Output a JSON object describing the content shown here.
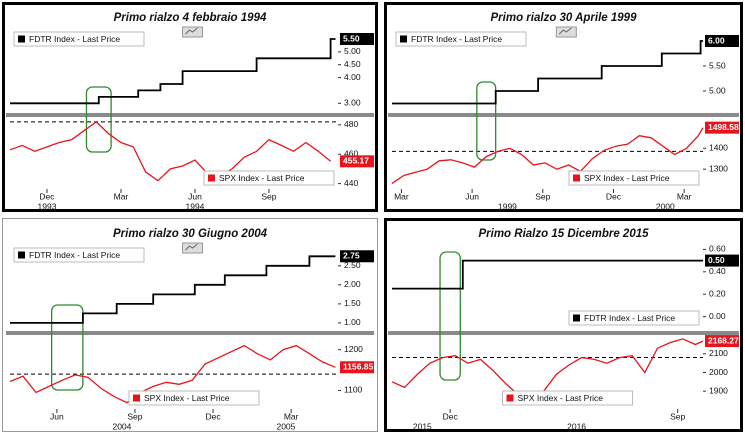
{
  "chart_data": [
    {
      "type": "line",
      "title": "Primo  rialzo 4 febbraio 1994",
      "xlim": [
        0.5,
        13.8
      ],
      "xticks": [
        {
          "value": 2,
          "label": "Dec"
        },
        {
          "value": 5,
          "label": "Mar"
        },
        {
          "value": 8,
          "label": "Jun"
        },
        {
          "value": 11,
          "label": "Sep"
        }
      ],
      "x_year_ticks": [
        {
          "value": 2,
          "label": "1993"
        },
        {
          "value": 8,
          "label": "1994"
        }
      ],
      "ylim": [
        2.7,
        5.85
      ],
      "yticks": [
        {
          "value": 3,
          "label": "3.00"
        },
        {
          "value": 4,
          "label": "4.00"
        },
        {
          "value": 4.5,
          "label": "4.50"
        },
        {
          "value": 5,
          "label": "5.00"
        }
      ],
      "y2lim": [
        437,
        484
      ],
      "y2ticks": [
        440,
        460,
        480
      ],
      "reference_y2": 482,
      "highlight_x": [
        3.6,
        4.6
      ],
      "legend_top": "upper left",
      "legend_bottom": "lower right",
      "series": [
        {
          "name": "FDTR Index - Last Price",
          "color": "#000000",
          "axis": "y",
          "last_label": "5.50",
          "x": [
            0.5,
            4.1,
            4.1,
            5.7,
            5.7,
            6.6,
            6.6,
            7.5,
            7.5,
            10.5,
            10.5,
            13.5,
            13.5,
            13.7
          ],
          "values": [
            3,
            3,
            3.25,
            3.25,
            3.5,
            3.5,
            3.75,
            3.75,
            4.25,
            4.25,
            4.75,
            4.75,
            5.5,
            5.5
          ]
        },
        {
          "name": "SPX Index - Last Price",
          "color": "#e8141c",
          "axis": "y2",
          "last_label": "455.17",
          "x": [
            0.5,
            1,
            1.5,
            2,
            2.5,
            3,
            3.5,
            4,
            4.5,
            5,
            5.5,
            6,
            6.5,
            7,
            7.5,
            8,
            8.5,
            9,
            9.5,
            10,
            10.5,
            11,
            11.5,
            12,
            12.5,
            13,
            13.5
          ],
          "values": [
            463,
            466,
            462,
            465,
            468,
            470,
            476,
            482,
            474,
            468,
            465,
            448,
            442,
            450,
            452,
            456,
            447,
            445,
            450,
            458,
            462,
            470,
            466,
            462,
            468,
            462,
            455.17
          ]
        }
      ]
    },
    {
      "type": "line",
      "title": "Primo rialzo 30 Aprile 1999",
      "xlim": [
        0.6,
        13.8
      ],
      "xticks": [
        {
          "value": 1,
          "label": "Mar"
        },
        {
          "value": 4,
          "label": "Jun"
        },
        {
          "value": 7,
          "label": "Sep"
        },
        {
          "value": 10,
          "label": "Dec"
        },
        {
          "value": 13,
          "label": "Mar"
        }
      ],
      "x_year_ticks": [
        {
          "value": 5.5,
          "label": "1999"
        },
        {
          "value": 12.2,
          "label": "2000"
        }
      ],
      "ylim": [
        4.6,
        6.22
      ],
      "yticks": [
        {
          "value": 5,
          "label": "5.00"
        },
        {
          "value": 5.5,
          "label": "5.50"
        }
      ],
      "y2lim": [
        1210,
        1540
      ],
      "y2ticks": [
        1300,
        1400
      ],
      "reference_y2": 1385,
      "highlight_x": [
        4.2,
        5.0
      ],
      "legend_top": "upper left",
      "legend_bottom": "lower right",
      "series": [
        {
          "name": "FDTR Index - Last Price",
          "color": "#000000",
          "axis": "y",
          "last_label": "6.00",
          "x": [
            0.6,
            5,
            5,
            6.8,
            6.8,
            9.5,
            9.5,
            12.05,
            12.05,
            13.7,
            13.7,
            13.8
          ],
          "values": [
            4.75,
            4.75,
            5,
            5,
            5.25,
            5.25,
            5.5,
            5.5,
            5.75,
            5.75,
            6,
            6
          ]
        },
        {
          "name": "SPX Index - Last Price",
          "color": "#e8141c",
          "axis": "y2",
          "last_label": "1498.58",
          "x": [
            0.6,
            1.1,
            1.6,
            2.1,
            2.6,
            3.1,
            3.6,
            4.1,
            4.6,
            5.1,
            5.6,
            6.1,
            6.6,
            7.1,
            7.6,
            8.1,
            8.6,
            9.1,
            9.6,
            10.1,
            10.6,
            11.1,
            11.6,
            12.1,
            12.6,
            13.1,
            13.6,
            13.8
          ],
          "values": [
            1232,
            1270,
            1285,
            1300,
            1340,
            1345,
            1330,
            1310,
            1360,
            1385,
            1400,
            1370,
            1320,
            1330,
            1300,
            1320,
            1290,
            1350,
            1390,
            1410,
            1420,
            1460,
            1450,
            1410,
            1370,
            1400,
            1460,
            1498.58
          ]
        }
      ]
    },
    {
      "type": "line",
      "title": "Primo rialzo 30 Giugno 2004",
      "xlim": [
        0.2,
        12.8
      ],
      "xticks": [
        {
          "value": 2,
          "label": "Jun"
        },
        {
          "value": 5,
          "label": "Sep"
        },
        {
          "value": 8,
          "label": "Dec"
        },
        {
          "value": 11,
          "label": "Mar"
        }
      ],
      "x_year_ticks": [
        {
          "value": 4.5,
          "label": "2004"
        },
        {
          "value": 10.8,
          "label": "2005"
        }
      ],
      "ylim": [
        0.84,
        3.02
      ],
      "yticks": [
        {
          "value": 1,
          "label": "1.00"
        },
        {
          "value": 1.5,
          "label": "1.50"
        },
        {
          "value": 2,
          "label": "2.00"
        },
        {
          "value": 2.5,
          "label": "2.50"
        }
      ],
      "y2lim": [
        1057,
        1231
      ],
      "y2ticks": [
        1100,
        1200
      ],
      "reference_y2": 1140,
      "highlight_x": [
        1.8,
        3.0
      ],
      "legend_top": "upper left",
      "legend_bottom": "lower center",
      "series": [
        {
          "name": "FDTR Index - Last Price",
          "color": "#000000",
          "axis": "y",
          "last_label": "2.75",
          "x": [
            0.2,
            3,
            3,
            4.3,
            4.3,
            5.7,
            5.7,
            7.3,
            7.3,
            8.45,
            8.45,
            10.05,
            10.05,
            11.7,
            11.7,
            12.7
          ],
          "values": [
            1,
            1,
            1.25,
            1.25,
            1.5,
            1.5,
            1.75,
            1.75,
            2,
            2,
            2.25,
            2.25,
            2.5,
            2.5,
            2.75,
            2.75
          ]
        },
        {
          "name": "SPX Index - Last Price",
          "color": "#e8141c",
          "axis": "y2",
          "last_label": "1156.85",
          "x": [
            0.2,
            0.7,
            1.2,
            1.7,
            2.2,
            2.7,
            3.2,
            3.7,
            4.2,
            4.7,
            5.2,
            5.7,
            6.2,
            6.7,
            7.2,
            7.7,
            8.2,
            8.7,
            9.2,
            9.7,
            10.2,
            10.7,
            11.2,
            11.7,
            12.2,
            12.7
          ],
          "values": [
            1122,
            1135,
            1095,
            1110,
            1125,
            1138,
            1132,
            1105,
            1085,
            1070,
            1095,
            1110,
            1120,
            1115,
            1125,
            1165,
            1180,
            1195,
            1210,
            1190,
            1175,
            1200,
            1210,
            1190,
            1170,
            1156.85
          ]
        }
      ]
    },
    {
      "type": "line",
      "title": "Primo Rialzo 15 Dicembre 2015",
      "xlim": [
        2.7,
        15
      ],
      "xticks": [
        {
          "value": 5,
          "label": "Dec"
        },
        {
          "value": 14,
          "label": "Sep"
        }
      ],
      "x_year_ticks": [
        {
          "value": 3.9,
          "label": "2015"
        },
        {
          "value": 10,
          "label": "2016"
        }
      ],
      "ylim": [
        -0.11,
        0.63
      ],
      "yticks": [
        {
          "value": 0,
          "label": "0.00"
        },
        {
          "value": 0.2,
          "label": "0.20"
        },
        {
          "value": 0.4,
          "label": "0.40"
        },
        {
          "value": 0.6,
          "label": "0.60"
        }
      ],
      "y2lim": [
        1810,
        2190
      ],
      "y2ticks": [
        1900,
        2000,
        2100
      ],
      "reference_y2": 2080,
      "highlight_x": [
        4.6,
        5.4
      ],
      "legend_top": "lower right",
      "legend_bottom": "lower center",
      "series": [
        {
          "name": "FDTR Index - Last Price",
          "color": "#000000",
          "axis": "y",
          "last_label": "0.50",
          "x": [
            2.7,
            5.5,
            5.5,
            15
          ],
          "values": [
            0.25,
            0.25,
            0.5,
            0.5
          ]
        },
        {
          "name": "SPX Index - Last Price",
          "color": "#e8141c",
          "axis": "y2",
          "last_label": "2168.27",
          "x": [
            2.7,
            3.2,
            3.7,
            4.2,
            4.7,
            5.2,
            5.7,
            6.2,
            6.7,
            7.2,
            7.7,
            8.2,
            8.7,
            9.2,
            9.7,
            10.2,
            10.7,
            11.2,
            11.7,
            12.2,
            12.7,
            13.2,
            13.7,
            14.2,
            14.7,
            15
          ],
          "values": [
            1950,
            1920,
            1990,
            2050,
            2080,
            2090,
            2050,
            2070,
            2010,
            1940,
            1880,
            1870,
            1900,
            1990,
            2040,
            2080,
            2070,
            2050,
            2080,
            2090,
            2000,
            2130,
            2160,
            2180,
            2150,
            2168.27
          ]
        }
      ]
    }
  ]
}
